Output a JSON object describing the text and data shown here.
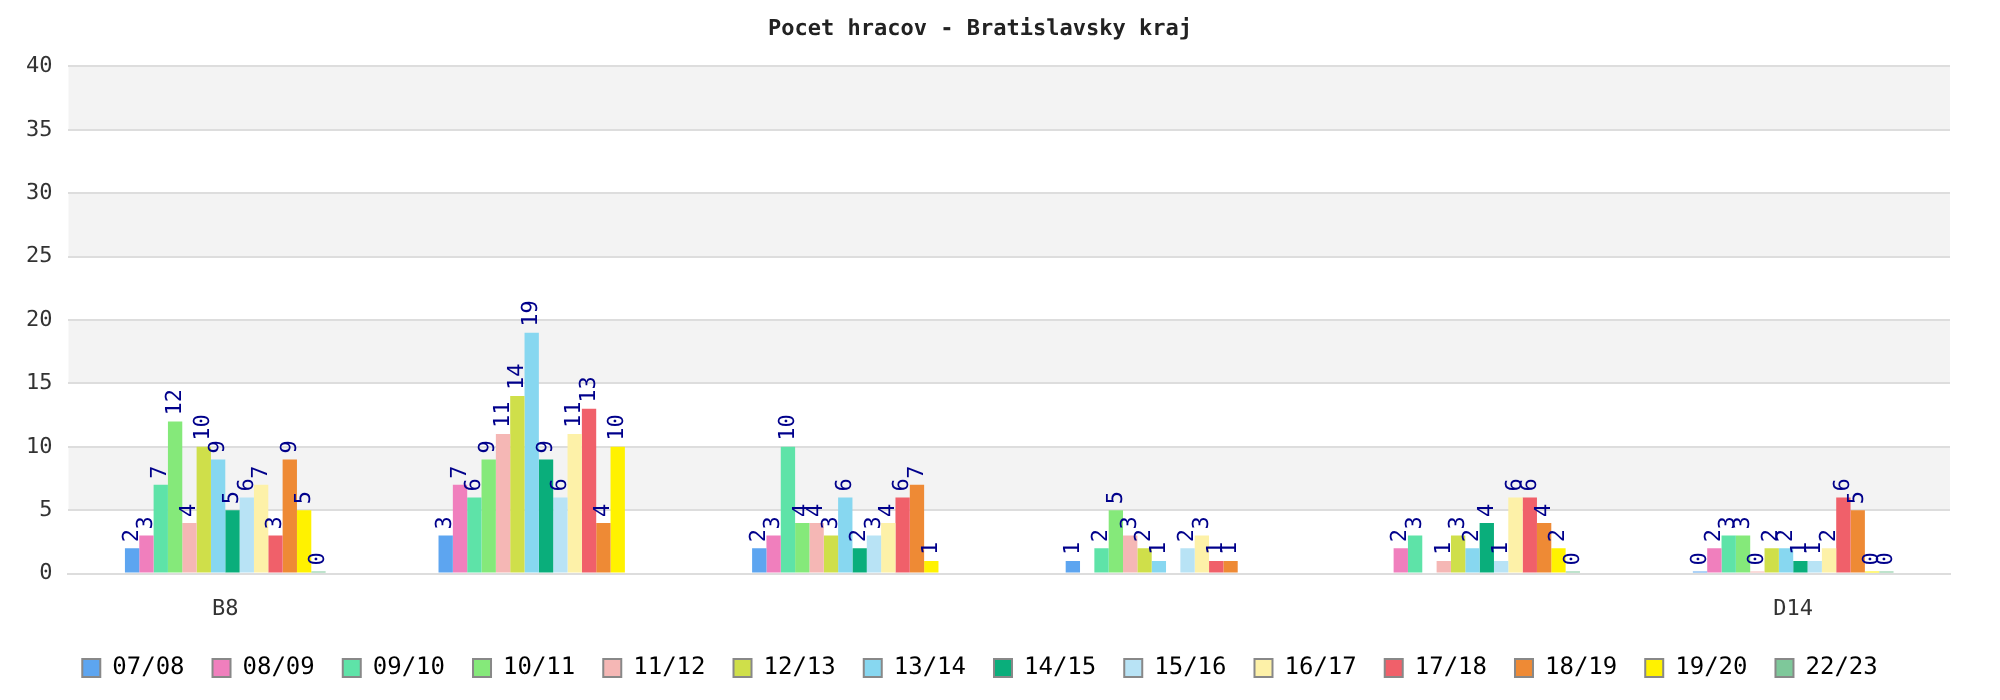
{
  "chart_data": {
    "type": "bar",
    "title": "Pocet hracov - Bratislavsky kraj",
    "categories": [
      "B8",
      null,
      null,
      null,
      null,
      "D14"
    ],
    "ylim": [
      0,
      40
    ],
    "yticks": [
      0,
      5,
      10,
      15,
      20,
      25,
      30,
      35,
      40
    ],
    "grid": true,
    "legend": "bottom",
    "data_labels": true,
    "series": [
      {
        "name": "07/08",
        "color": "#5da5f0",
        "values": [
          2,
          3,
          2,
          1,
          null,
          0
        ]
      },
      {
        "name": "08/09",
        "color": "#f07fbd",
        "values": [
          3,
          7,
          3,
          null,
          2,
          2
        ]
      },
      {
        "name": "09/10",
        "color": "#5ee3a8",
        "values": [
          7,
          6,
          10,
          2,
          3,
          3
        ]
      },
      {
        "name": "10/11",
        "color": "#85e97a",
        "values": [
          12,
          9,
          4,
          5,
          null,
          3
        ]
      },
      {
        "name": "11/12",
        "color": "#f5b7b5",
        "values": [
          4,
          11,
          4,
          3,
          1,
          0
        ]
      },
      {
        "name": "12/13",
        "color": "#cfdf4a",
        "values": [
          10,
          14,
          3,
          2,
          3,
          2
        ]
      },
      {
        "name": "13/14",
        "color": "#87d7f0",
        "values": [
          9,
          19,
          6,
          1,
          2,
          2
        ]
      },
      {
        "name": "14/15",
        "color": "#0aae7b",
        "values": [
          5,
          9,
          2,
          null,
          4,
          1
        ]
      },
      {
        "name": "15/16",
        "color": "#b8e3f5",
        "values": [
          6,
          6,
          3,
          2,
          1,
          1
        ]
      },
      {
        "name": "16/17",
        "color": "#fdf1a8",
        "values": [
          7,
          11,
          4,
          3,
          6,
          2
        ]
      },
      {
        "name": "17/18",
        "color": "#f0606a",
        "values": [
          3,
          13,
          6,
          1,
          6,
          6
        ]
      },
      {
        "name": "18/19",
        "color": "#ee8a35",
        "values": [
          9,
          4,
          7,
          1,
          4,
          5
        ]
      },
      {
        "name": "19/20",
        "color": "#fff200",
        "values": [
          5,
          10,
          1,
          null,
          2,
          0
        ]
      },
      {
        "name": "22/23",
        "color": "#7ec89a",
        "values": [
          0,
          null,
          null,
          null,
          0,
          0
        ]
      }
    ]
  }
}
